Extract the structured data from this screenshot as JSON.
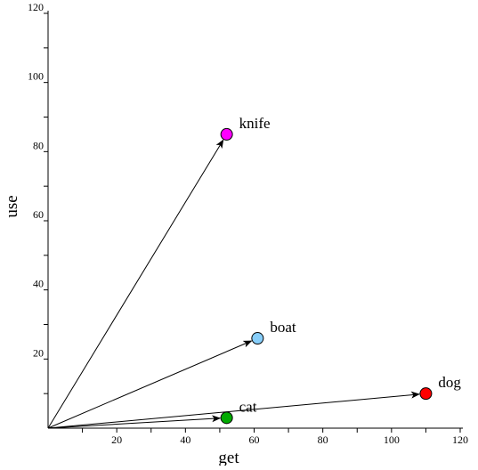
{
  "chart_data": {
    "type": "scatter",
    "title": "",
    "xlabel": "get",
    "ylabel": "use",
    "xlim": [
      0,
      120
    ],
    "ylim": [
      0,
      120
    ],
    "xticks": [
      20,
      40,
      60,
      80,
      100,
      120
    ],
    "yticks": [
      20,
      40,
      60,
      80,
      100,
      120
    ],
    "minor_step": 10,
    "grid": false,
    "vectors_from_origin": true,
    "points": [
      {
        "label": "knife",
        "x": 52,
        "y": 85,
        "color": "#ff00ff"
      },
      {
        "label": "boat",
        "x": 61,
        "y": 26,
        "color": "#87cefa"
      },
      {
        "label": "cat",
        "x": 52,
        "y": 3,
        "color": "#00aa00"
      },
      {
        "label": "dog",
        "x": 110,
        "y": 10,
        "color": "#ff0000"
      }
    ]
  }
}
